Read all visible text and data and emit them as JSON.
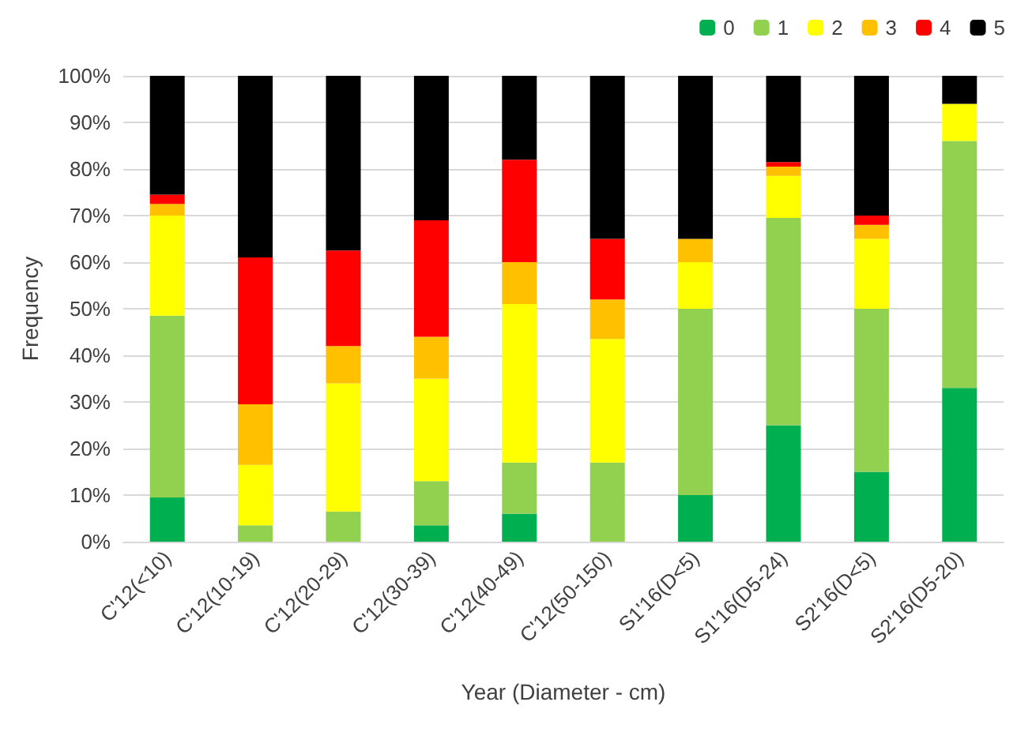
{
  "chart_data": {
    "type": "bar",
    "stacked": true,
    "xlabel": "Year (Diameter - cm)",
    "ylabel": "Frequency",
    "categories": [
      "C'12(<10)",
      "C'12(10-19)",
      "C'12(20-29)",
      "C'12(30-39)",
      "C'12(40-49)",
      "C'12(50-150)",
      "S1'16(D<5)",
      "S1'16(D5-24)",
      "S2'16(D<5)",
      "S2'16(D5-20)"
    ],
    "series": [
      {
        "name": "0",
        "color": "#00b050",
        "values": [
          9.5,
          0,
          0,
          3.5,
          6,
          0,
          10,
          25,
          15,
          33
        ]
      },
      {
        "name": "1",
        "color": "#92d050",
        "values": [
          39,
          3.5,
          6.5,
          9.5,
          11,
          17,
          40,
          44.5,
          35,
          53
        ]
      },
      {
        "name": "2",
        "color": "#ffff00",
        "values": [
          21.5,
          13,
          27.5,
          22,
          34,
          26.5,
          10,
          9,
          15,
          8
        ]
      },
      {
        "name": "3",
        "color": "#ffc000",
        "values": [
          2.5,
          13,
          8,
          9,
          9,
          8.5,
          5,
          2,
          3,
          0
        ]
      },
      {
        "name": "4",
        "color": "#ff0000",
        "values": [
          2,
          31.5,
          20.5,
          25,
          22,
          13,
          0,
          1,
          2,
          0
        ]
      },
      {
        "name": "5",
        "color": "#000000",
        "values": [
          25.5,
          39,
          37.5,
          31,
          18,
          35,
          35,
          18.5,
          30,
          6
        ]
      }
    ],
    "ylim": [
      0,
      100
    ],
    "yticks": [
      {
        "value": 0,
        "label": "0%"
      },
      {
        "value": 10,
        "label": "10%"
      },
      {
        "value": 20,
        "label": "20%"
      },
      {
        "value": 30,
        "label": "30%"
      },
      {
        "value": 40,
        "label": "40%"
      },
      {
        "value": 50,
        "label": "50%"
      },
      {
        "value": 60,
        "label": "60%"
      },
      {
        "value": 70,
        "label": "70%"
      },
      {
        "value": 80,
        "label": "80%"
      },
      {
        "value": 90,
        "label": "90%"
      },
      {
        "value": 100,
        "label": "100%"
      }
    ],
    "grid": "y",
    "legend": "top right"
  }
}
